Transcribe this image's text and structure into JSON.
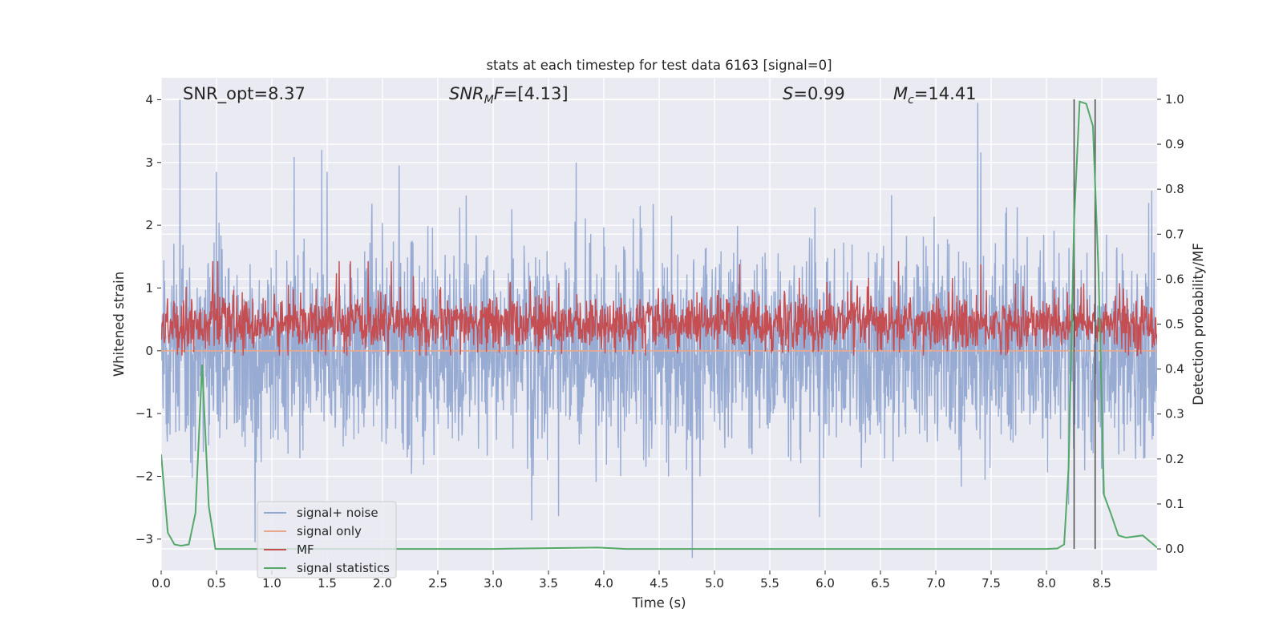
{
  "chart_data": {
    "type": "line",
    "title": "stats at each timestep for test data 6163 [signal=0]",
    "xlabel": "Time (s)",
    "ylabel_left": "Whitened strain",
    "ylabel_right": "Detection probability/MF",
    "xlim": [
      0.0,
      9.0
    ],
    "ylim_left": [
      -3.5,
      4.35
    ],
    "ylim_right": [
      -0.048,
      1.048
    ],
    "x_ticks": [
      "0.0",
      "0.5",
      "1.0",
      "1.5",
      "2.0",
      "2.5",
      "3.0",
      "3.5",
      "4.0",
      "4.5",
      "5.0",
      "5.5",
      "6.0",
      "6.5",
      "7.0",
      "7.5",
      "8.0",
      "8.5"
    ],
    "x_tick_values": [
      0.0,
      0.5,
      1.0,
      1.5,
      2.0,
      2.5,
      3.0,
      3.5,
      4.0,
      4.5,
      5.0,
      5.5,
      6.0,
      6.5,
      7.0,
      7.5,
      8.0,
      8.5
    ],
    "y_left_ticks": [
      "−3",
      "−2",
      "−1",
      "0",
      "1",
      "2",
      "3",
      "4"
    ],
    "y_left_tick_values": [
      -3,
      -2,
      -1,
      0,
      1,
      2,
      3,
      4
    ],
    "y_right_ticks": [
      "0.0",
      "0.1",
      "0.2",
      "0.3",
      "0.4",
      "0.5",
      "0.6",
      "0.7",
      "0.8",
      "0.9",
      "1.0"
    ],
    "y_right_tick_values": [
      0.0,
      0.1,
      0.2,
      0.3,
      0.4,
      0.5,
      0.6,
      0.7,
      0.8,
      0.9,
      1.0
    ],
    "grid": true,
    "legend_position": "lower-left",
    "annotations": {
      "snr_opt": "SNR_opt=8.37",
      "snr_mf_base": "SNR",
      "snr_mf_sub": "M",
      "snr_mf_rest": "F=[4.13]",
      "s_base": "S",
      "s_rest": "=0.99",
      "mc_base": "M",
      "mc_sub": "c",
      "mc_rest": "=14.41"
    },
    "vertical_lines_x": [
      8.25,
      8.44
    ],
    "series": [
      {
        "name": "signal+ noise",
        "color": "#92a8d1",
        "axis": "left",
        "noise_band": {
          "x_start": 0.0,
          "x_end": 9.0,
          "typical_min": -1.1,
          "typical_max": 1.1
        },
        "peaks": [
          {
            "x": 0.17,
            "y": 4.0
          },
          {
            "x": 0.5,
            "y": 2.85
          },
          {
            "x": 1.45,
            "y": 3.2
          },
          {
            "x": 1.5,
            "y": 2.85
          },
          {
            "x": 2.15,
            "y": 2.95
          },
          {
            "x": 3.75,
            "y": 3.0
          },
          {
            "x": 7.38,
            "y": 3.95
          },
          {
            "x": 8.95,
            "y": 2.55
          },
          {
            "x": 0.85,
            "y": -3.05
          },
          {
            "x": 3.35,
            "y": -2.7
          },
          {
            "x": 4.8,
            "y": -3.3
          },
          {
            "x": 5.95,
            "y": -2.65
          },
          {
            "x": 8.2,
            "y": -2.45
          }
        ]
      },
      {
        "name": "signal only",
        "color": "#e8a88c",
        "axis": "left",
        "x": [
          0.0,
          9.0
        ],
        "y": [
          0.0,
          0.0
        ]
      },
      {
        "name": "MF",
        "color": "#c44e52",
        "axis": "right",
        "band": {
          "x_start": 0.0,
          "x_end": 9.0,
          "typical_min": 0.44,
          "typical_max": 0.6
        }
      },
      {
        "name": "signal statistics",
        "color": "#55a868",
        "axis": "right",
        "x": [
          0.0,
          0.06,
          0.12,
          0.18,
          0.25,
          0.31,
          0.37,
          0.43,
          0.49,
          0.6,
          1.0,
          2.0,
          3.0,
          3.95,
          4.2,
          5.0,
          6.0,
          7.0,
          8.0,
          8.1,
          8.16,
          8.2,
          8.25,
          8.3,
          8.36,
          8.42,
          8.47,
          8.52,
          8.58,
          8.65,
          8.72,
          8.78,
          8.87,
          9.0
        ],
        "y": [
          0.21,
          0.036,
          0.01,
          0.007,
          0.01,
          0.08,
          0.41,
          0.095,
          0.0,
          0.0,
          0.0,
          0.0,
          0.0,
          0.003,
          0.0,
          0.0,
          0.0,
          0.0,
          0.0,
          0.001,
          0.01,
          0.18,
          0.73,
          0.995,
          0.99,
          0.94,
          0.62,
          0.12,
          0.08,
          0.03,
          0.025,
          0.027,
          0.03,
          0.003
        ]
      }
    ]
  },
  "legend": {
    "items": [
      {
        "label": "signal+ noise",
        "color": "#92a8d1"
      },
      {
        "label": "signal only",
        "color": "#e8a88c"
      },
      {
        "label": "MF",
        "color": "#c44e52"
      },
      {
        "label": "signal statistics",
        "color": "#55a868"
      }
    ]
  }
}
